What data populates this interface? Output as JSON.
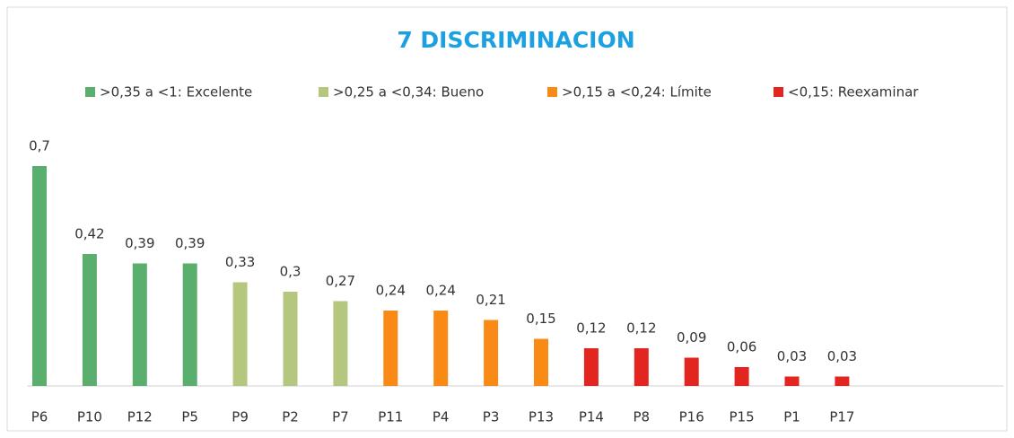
{
  "chart_data": {
    "type": "bar",
    "title": "7 DISCRIMINACION",
    "categories": [
      "P6",
      "P10",
      "P12",
      "P5",
      "P9",
      "P2",
      "P7",
      "P11",
      "P4",
      "P3",
      "P13",
      "P14",
      "P8",
      "P16",
      "P15",
      "P1",
      "P17"
    ],
    "series": [
      {
        "name": ">0,35 a <1: Excelente",
        "color": "#5aae6e",
        "values": [
          0.7,
          0.42,
          0.39,
          0.39,
          null,
          null,
          null,
          null,
          null,
          null,
          null,
          null,
          null,
          null,
          null,
          null,
          null
        ],
        "value_labels": [
          "0,7",
          "0,42",
          "0,39",
          "0,39",
          null,
          null,
          null,
          null,
          null,
          null,
          null,
          null,
          null,
          null,
          null,
          null,
          null
        ]
      },
      {
        "name": ">0,25 a <0,34: Bueno",
        "color": "#b5c77e",
        "values": [
          null,
          null,
          null,
          null,
          0.33,
          0.3,
          0.27,
          null,
          null,
          null,
          null,
          null,
          null,
          null,
          null,
          null,
          null
        ],
        "value_labels": [
          null,
          null,
          null,
          null,
          "0,33",
          "0,3",
          "0,27",
          null,
          null,
          null,
          null,
          null,
          null,
          null,
          null,
          null,
          null
        ]
      },
      {
        "name": ">0,15 a <0,24: Límite",
        "color": "#f98a15",
        "values": [
          null,
          null,
          null,
          null,
          null,
          null,
          null,
          0.24,
          0.24,
          0.21,
          0.15,
          null,
          null,
          null,
          null,
          null,
          null
        ],
        "value_labels": [
          null,
          null,
          null,
          null,
          null,
          null,
          null,
          "0,24",
          "0,24",
          "0,21",
          "0,15",
          null,
          null,
          null,
          null,
          null,
          null
        ]
      },
      {
        "name": "<0,15: Reexaminar",
        "color": "#e32520",
        "values": [
          null,
          null,
          null,
          null,
          null,
          null,
          null,
          null,
          null,
          null,
          null,
          0.12,
          0.12,
          0.09,
          0.06,
          0.03,
          0.03
        ],
        "value_labels": [
          null,
          null,
          null,
          null,
          null,
          null,
          null,
          null,
          null,
          null,
          null,
          "0,12",
          "0,12",
          "0,09",
          "0,06",
          "0,03",
          "0,03"
        ]
      }
    ]
  }
}
